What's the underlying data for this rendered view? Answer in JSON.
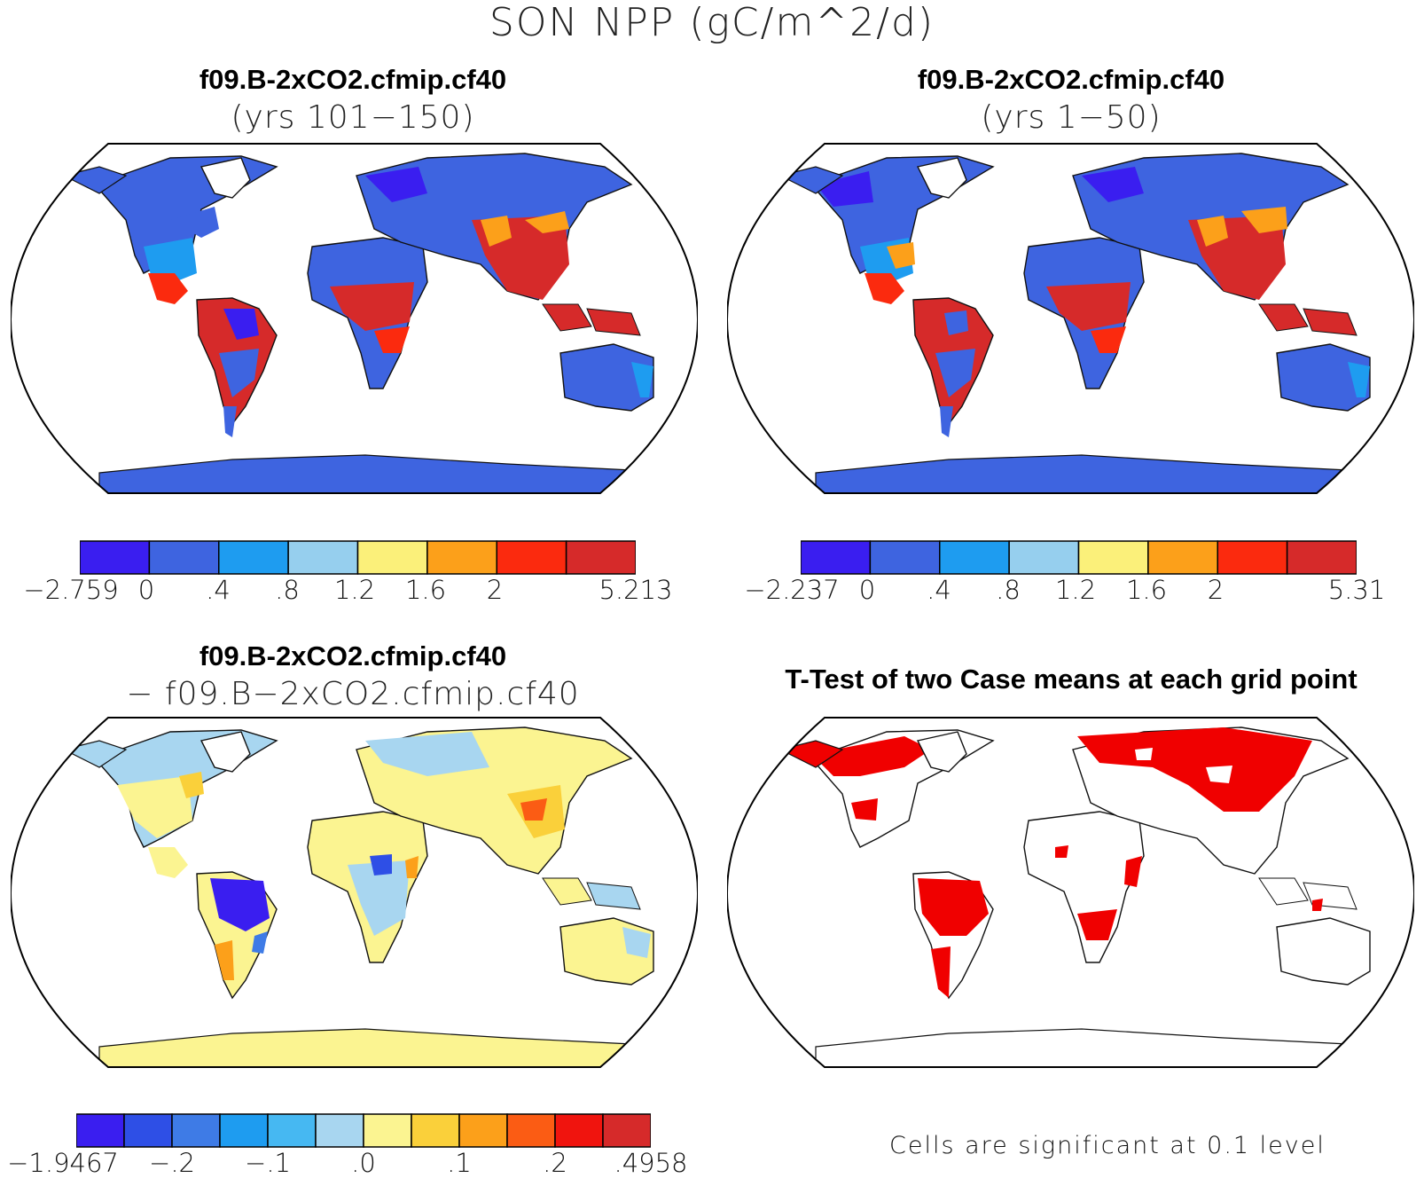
{
  "figure_title": "SON NPP (gC/m^2/d)",
  "panels": [
    {
      "title": "f09.B-2xCO2.cfmip.cf40",
      "subtitle": "(yrs 101−150)",
      "colors": [
        "#3a1ef0",
        "#3e64e0",
        "#1e9cf0",
        "#96cfee",
        "#fbf07a",
        "#fca01a",
        "#fb2a0e",
        "#d62a2a"
      ],
      "labels": [
        "−2.759",
        "0",
        ".4",
        ".8",
        "1.2",
        "1.6",
        "2",
        "5.213"
      ]
    },
    {
      "title": "f09.B-2xCO2.cfmip.cf40",
      "subtitle": "(yrs 1−50)",
      "colors": [
        "#3a1ef0",
        "#3e64e0",
        "#1e9cf0",
        "#96cfee",
        "#fbf07a",
        "#fca01a",
        "#fb2a0e",
        "#d62a2a"
      ],
      "labels": [
        "−2.237",
        "0",
        ".4",
        ".8",
        "1.2",
        "1.6",
        "2",
        "5.31"
      ]
    },
    {
      "title": "f09.B-2xCO2.cfmip.cf40",
      "subtitle": "−  f09.B−2xCO2.cfmip.cf40",
      "colors": [
        "#3a1ef0",
        "#2e4fe6",
        "#3e7be6",
        "#1e9cf0",
        "#46b8f2",
        "#a8d6f0",
        "#fbf491",
        "#fad03a",
        "#fca01a",
        "#fb5c14",
        "#f0140e",
        "#d62a2a"
      ],
      "labels": [
        "−1.9467",
        "−.2",
        "−.1",
        ".0",
        ".1",
        ".2",
        ".4958"
      ]
    },
    {
      "title": "T-Test of two Case means at each grid point",
      "footnote": "Cells are significant at 0.1 level"
    }
  ],
  "map_colors": {
    "outline": "#000000",
    "land_outline": "#111111",
    "significant": "#f00000"
  }
}
